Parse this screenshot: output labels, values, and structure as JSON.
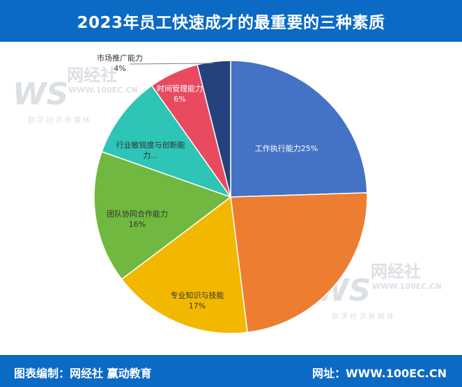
{
  "header": {
    "title": "2023年员工快速成才的最重要的三种素质"
  },
  "footer": {
    "left_text": "图表编制：网经社 赢动教育",
    "right_text": "网址：WWW.100EC.CN"
  },
  "watermark": {
    "brand": "网经社",
    "url": "WWW.100EC.CN",
    "tagline": "数 字 经 济 新 媒 体"
  },
  "chart_data": {
    "type": "pie",
    "slices": [
      {
        "label": "工作执行能力",
        "value": 25,
        "color": "#4472c4"
      },
      {
        "label": "",
        "value": 24,
        "color": "#ed7d31"
      },
      {
        "label": "专业知识与技能",
        "value": 17,
        "color": "#f2b800"
      },
      {
        "label": "团队协同合作能力",
        "value": 16,
        "color": "#70b83f"
      },
      {
        "label": "行业敏锐度与创新能力...",
        "value": 10,
        "color": "#2ec4b6"
      },
      {
        "label": "时间管理能力",
        "value": 6,
        "color": "#e84a5f"
      },
      {
        "label": "市场推广能力",
        "value": 4,
        "color": "#24427e"
      }
    ],
    "data_labels": [
      "工作执行能力25%",
      "专业知识与技能",
      "17%",
      "团队协同合作能力",
      "16%",
      "行业敏锐度与创新能",
      "力...",
      "时间管理能力",
      "6%",
      "市场推广能力",
      "4%"
    ]
  }
}
